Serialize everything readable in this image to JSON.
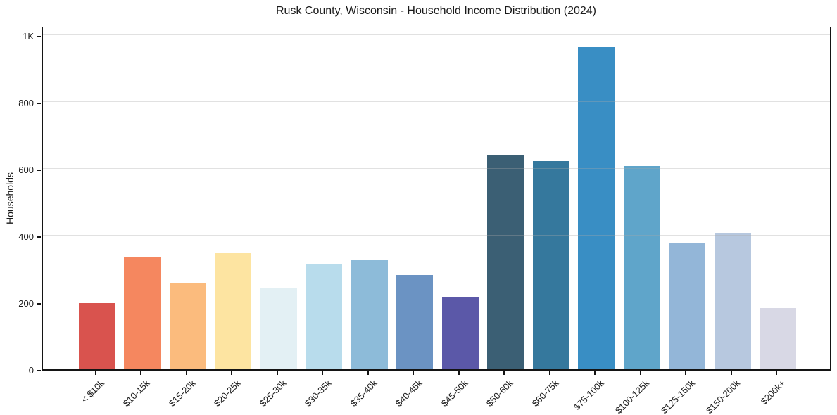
{
  "chart_data": {
    "type": "bar",
    "title": "Rusk County, Wisconsin - Household Income Distribution (2024)",
    "xlabel": "",
    "ylabel": "Households",
    "categories": [
      "< $10k",
      "$10-15k",
      "$15-20k",
      "$20-25k",
      "$25-30k",
      "$30-35k",
      "$35-40k",
      "$40-45k",
      "$45-50k",
      "$50-60k",
      "$60-75k",
      "$75-100k",
      "$100-125k",
      "$125-150k",
      "$150-200k",
      "$200k+"
    ],
    "values": [
      198,
      335,
      260,
      350,
      245,
      315,
      327,
      283,
      217,
      643,
      624,
      965,
      609,
      377,
      409,
      183
    ],
    "bar_colors": [
      "#d9534e",
      "#f5875f",
      "#fbbb7d",
      "#fde4a1",
      "#e3f0f4",
      "#b8dcec",
      "#8dbbd9",
      "#6b93c3",
      "#5b58a8",
      "#3b5f74",
      "#35789d",
      "#398ec4",
      "#5fa5ca",
      "#93b6d8",
      "#b7c8df",
      "#d8d8e5"
    ],
    "ylim": [
      0,
      1030
    ],
    "ytick_values": [
      0,
      200,
      400,
      600,
      800,
      1000
    ],
    "ytick_labels": [
      "0",
      "200",
      "400",
      "600",
      "800",
      "1K"
    ],
    "grid": "horizontal, light gray, drawn over bars",
    "legend": "none",
    "frame": "full box, dark spines",
    "x_label_rotation_deg": 45
  },
  "colors": {
    "background": "#ffffff",
    "text": "#1a1a1a",
    "spine": "#141414",
    "gridline": "#e5e5e5"
  }
}
